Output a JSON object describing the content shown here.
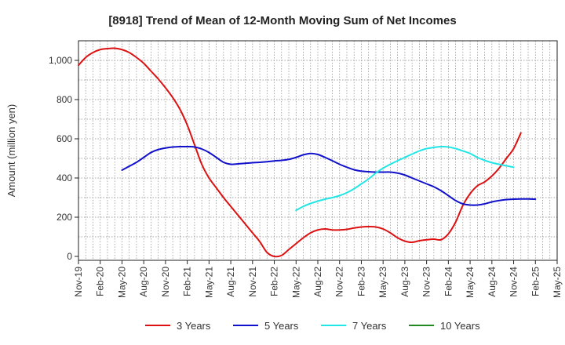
{
  "chart_data": {
    "type": "line",
    "title": "[8918]  Trend of Mean of 12-Month Moving Sum of Net Incomes",
    "ylabel": "Amount (million yen)",
    "xlabel": "",
    "ylim": [
      -20,
      1100
    ],
    "y_ticks": [
      {
        "value": 0,
        "label": "0"
      },
      {
        "value": 200,
        "label": "200"
      },
      {
        "value": 400,
        "label": "400"
      },
      {
        "value": 600,
        "label": "600"
      },
      {
        "value": 800,
        "label": "800"
      },
      {
        "value": 1000,
        "label": "1,000"
      }
    ],
    "x_ticks": [
      "Nov-19",
      "Feb-20",
      "May-20",
      "Aug-20",
      "Nov-20",
      "Feb-21",
      "May-21",
      "Aug-21",
      "Nov-21",
      "Feb-22",
      "May-22",
      "Aug-22",
      "Nov-22",
      "Feb-23",
      "May-23",
      "Aug-23",
      "Nov-23",
      "Feb-24",
      "May-24",
      "Aug-24",
      "Nov-24",
      "Feb-25",
      "May-25"
    ],
    "grid": true,
    "legend_position": "bottom",
    "series": [
      {
        "name": "3 Years",
        "color": "#dd1111",
        "start_index": 0,
        "values": [
          975,
          1015,
          1040,
          1055,
          1060,
          1062,
          1055,
          1040,
          1015,
          985,
          945,
          905,
          860,
          810,
          750,
          670,
          570,
          470,
          400,
          350,
          300,
          255,
          210,
          165,
          120,
          75,
          20,
          0,
          5,
          35,
          65,
          95,
          120,
          135,
          140,
          135,
          135,
          138,
          145,
          150,
          152,
          150,
          140,
          120,
          95,
          78,
          72,
          80,
          85,
          88,
          85,
          115,
          175,
          260,
          320,
          360,
          380,
          410,
          450,
          500,
          550,
          630
        ]
      },
      {
        "name": "5 Years",
        "color": "#1111cc",
        "start_index": 6,
        "values": [
          440,
          460,
          480,
          505,
          530,
          545,
          553,
          558,
          560,
          560,
          558,
          548,
          530,
          505,
          480,
          470,
          472,
          475,
          478,
          480,
          483,
          487,
          490,
          495,
          505,
          518,
          525,
          520,
          505,
          488,
          470,
          455,
          442,
          435,
          432,
          430,
          430,
          430,
          425,
          415,
          400,
          385,
          370,
          355,
          335,
          310,
          285,
          268,
          262,
          262,
          268,
          278,
          285,
          290,
          292,
          293,
          293,
          292
        ]
      },
      {
        "name": "7 Years",
        "color": "#22e5e5",
        "start_index": 30,
        "values": [
          235,
          255,
          270,
          282,
          292,
          300,
          310,
          325,
          345,
          370,
          395,
          425,
          450,
          470,
          488,
          505,
          522,
          538,
          550,
          556,
          560,
          558,
          550,
          538,
          525,
          505,
          490,
          478,
          470,
          462,
          455
        ]
      },
      {
        "name": "10 Years",
        "color": "#228822",
        "start_index": 0,
        "values": []
      }
    ]
  }
}
